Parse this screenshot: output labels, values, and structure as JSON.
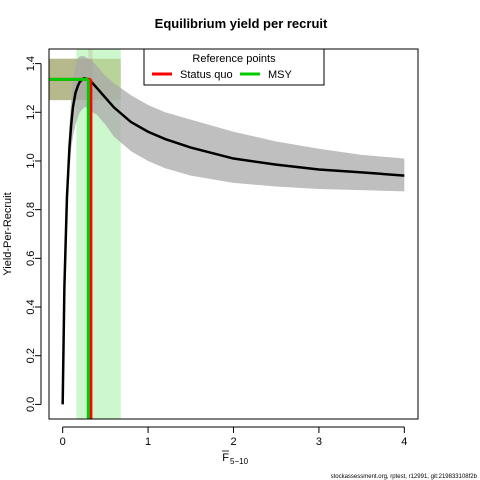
{
  "chart_data": {
    "type": "line",
    "title": "Equilibrium yield per recruit",
    "xlabel": {
      "main": "F",
      "subscript": "5−10"
    },
    "ylabel": "Yield-Per-Recruit",
    "xlim": [
      -0.16,
      4.16
    ],
    "ylim": [
      -0.06,
      1.46
    ],
    "x_ticks": [
      0,
      1,
      2,
      3,
      4
    ],
    "y_ticks": [
      0.0,
      0.2,
      0.4,
      0.6,
      0.8,
      1.0,
      1.2,
      1.4
    ],
    "x_tick_labels": [
      "0",
      "1",
      "2",
      "3",
      "4"
    ],
    "y_tick_labels": [
      "0.0",
      "0.2",
      "0.4",
      "0.6",
      "0.8",
      "1.0",
      "1.2",
      "1.4"
    ],
    "grid": false,
    "series": [
      {
        "role": "estimate",
        "color": "#000000",
        "x": [
          0,
          0.02,
          0.05,
          0.08,
          0.1,
          0.12,
          0.15,
          0.18,
          0.2,
          0.25,
          0.3,
          0.35,
          0.4,
          0.5,
          0.6,
          0.8,
          1.0,
          1.2,
          1.5,
          2.0,
          2.5,
          3.0,
          3.5,
          4.0
        ],
        "y": [
          0,
          0.48,
          0.85,
          1.06,
          1.15,
          1.22,
          1.28,
          1.31,
          1.325,
          1.34,
          1.335,
          1.32,
          1.3,
          1.26,
          1.22,
          1.16,
          1.12,
          1.09,
          1.055,
          1.01,
          0.985,
          0.965,
          0.953,
          0.94
        ]
      }
    ],
    "confidence_band": {
      "color": "#aaaaaa",
      "x": [
        0,
        0.02,
        0.05,
        0.08,
        0.1,
        0.12,
        0.15,
        0.18,
        0.2,
        0.25,
        0.3,
        0.35,
        0.4,
        0.5,
        0.6,
        0.8,
        1.0,
        1.2,
        1.5,
        2.0,
        2.5,
        3.0,
        3.5,
        4.0
      ],
      "lower": [
        0,
        0.44,
        0.78,
        0.97,
        1.05,
        1.1,
        1.15,
        1.18,
        1.2,
        1.22,
        1.22,
        1.2,
        1.19,
        1.15,
        1.1,
        1.04,
        1.0,
        0.97,
        0.94,
        0.91,
        0.895,
        0.885,
        0.88,
        0.875
      ],
      "upper": [
        0,
        0.52,
        0.92,
        1.15,
        1.25,
        1.33,
        1.39,
        1.42,
        1.43,
        1.43,
        1.42,
        1.41,
        1.39,
        1.35,
        1.32,
        1.27,
        1.23,
        1.2,
        1.17,
        1.12,
        1.08,
        1.05,
        1.025,
        1.01
      ]
    },
    "reference_points": [
      {
        "label": "Status quo",
        "color": "#ff0000",
        "f": 0.33,
        "yield": 1.335,
        "f_interval": [
          0.3,
          0.35
        ],
        "yield_interval": [
          1.25,
          1.42
        ]
      },
      {
        "label": "MSY",
        "color": "#00cc00",
        "f": 0.3,
        "yield": 1.335,
        "f_interval": [
          0.16,
          0.68
        ],
        "yield_interval": [
          1.25,
          1.42
        ]
      }
    ],
    "legend": {
      "title": "Reference points",
      "placement": "top",
      "entries": [
        "Status quo",
        "MSY"
      ]
    }
  },
  "footer": "stockassessment.org, rptest, r12991, git:219833108f2b"
}
